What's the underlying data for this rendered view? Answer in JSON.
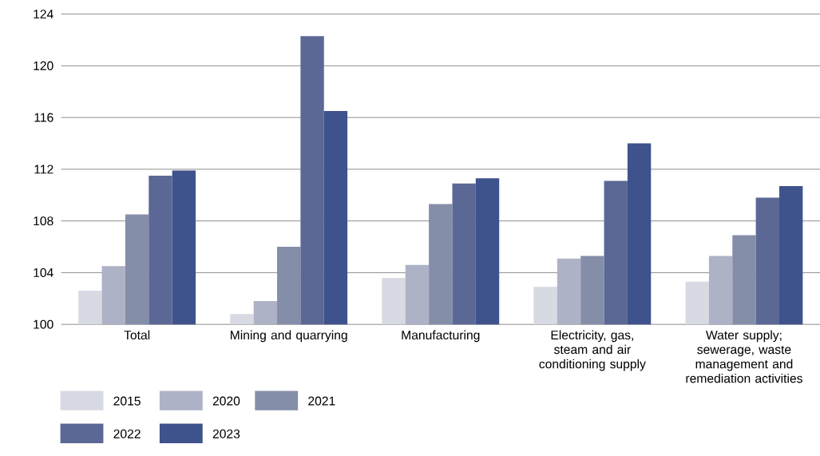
{
  "chart_data": {
    "type": "bar",
    "categories": [
      "Total",
      "Mining and quarrying",
      "Manufacturing",
      "Electricity, gas, steam and air conditioning supply",
      "Water supply; sewerage, waste management and remediation activities"
    ],
    "series": [
      {
        "name": "2015",
        "color": "#d7d9e3",
        "values": [
          102.6,
          100.8,
          103.6,
          102.9,
          103.3
        ]
      },
      {
        "name": "2020",
        "color": "#aeb2c6",
        "values": [
          104.5,
          101.8,
          104.6,
          105.1,
          105.3
        ]
      },
      {
        "name": "2021",
        "color": "#858ea9",
        "values": [
          108.5,
          106.0,
          109.3,
          105.3,
          106.9
        ]
      },
      {
        "name": "2022",
        "color": "#5b6895",
        "values": [
          111.5,
          122.3,
          110.9,
          111.1,
          109.8
        ]
      },
      {
        "name": "2023",
        "color": "#3e528c",
        "values": [
          111.9,
          116.5,
          111.3,
          114.0,
          110.7
        ]
      }
    ],
    "ylim": [
      100,
      124
    ],
    "yticks": [
      100,
      104,
      108,
      112,
      116,
      120,
      124
    ],
    "grid": "y",
    "legend": "bottom left"
  }
}
